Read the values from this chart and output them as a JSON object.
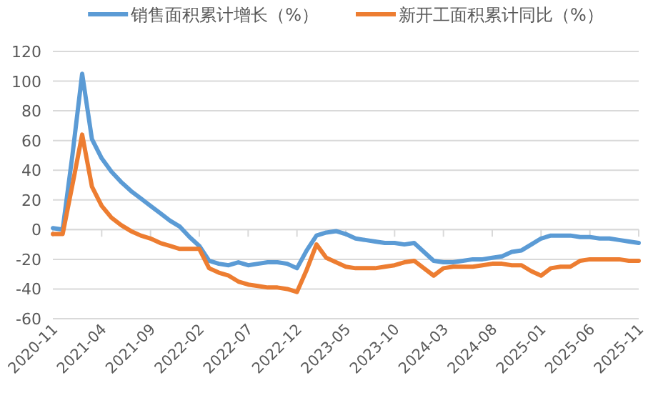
{
  "chart_data": {
    "type": "line",
    "categories": [
      "2020-11",
      null,
      null,
      null,
      null,
      "2021-04",
      null,
      null,
      null,
      null,
      "2021-09",
      null,
      null,
      null,
      null,
      "2022-02",
      null,
      null,
      null,
      null,
      "2022-07",
      null,
      null,
      null,
      null,
      "2022-12",
      null,
      null,
      null,
      null,
      "2023-05",
      null,
      null,
      null,
      null,
      "2023-10",
      null,
      null,
      null,
      null,
      "2024-03",
      null,
      null,
      null,
      null,
      "2024-08",
      null,
      null,
      null,
      null,
      "2025-01",
      null,
      null,
      null,
      null,
      "2025-06",
      null,
      null,
      null,
      null,
      "2025-11"
    ],
    "series": [
      {
        "name": "销售面积累计增长（%）",
        "color": "#5b9bd5",
        "values": [
          1,
          0,
          50,
          105,
          61,
          48,
          39,
          32,
          26,
          21,
          16,
          11,
          6,
          2,
          -5,
          -11,
          -21,
          -23,
          -24,
          -22,
          -24,
          -23,
          -22,
          -22,
          -23,
          -26,
          -14,
          -4,
          -2,
          -1,
          -3,
          -6,
          -7,
          -8,
          -9,
          -9,
          -10,
          -9,
          -15,
          -21,
          -22,
          -22,
          -21,
          -20,
          -20,
          -19,
          -18,
          -15,
          -14,
          -10,
          -6,
          -4,
          -4,
          -4,
          -5,
          -5,
          -6,
          -6,
          -7,
          -8,
          -9
        ]
      },
      {
        "name": "新开工面积累计同比（%）",
        "color": "#ed7d31",
        "values": [
          -3,
          -3,
          30,
          64,
          29,
          16,
          8,
          3,
          -1,
          -4,
          -6,
          -9,
          -11,
          -13,
          -13,
          -13,
          -26,
          -29,
          -31,
          -35,
          -37,
          -38,
          -39,
          -39,
          -40,
          -42,
          -27,
          -10,
          -19,
          -22,
          -25,
          -26,
          -26,
          -26,
          -25,
          -24,
          -22,
          -21,
          -26,
          -31,
          -26,
          -25,
          -25,
          -25,
          -24,
          -23,
          -23,
          -24,
          -24,
          -28,
          -31,
          -26,
          -25,
          -25,
          -21,
          -20,
          -20,
          -20,
          -20,
          -21,
          -21
        ]
      }
    ],
    "ylim": [
      -60,
      120
    ],
    "yticks": [
      -60,
      -40,
      -20,
      0,
      20,
      40,
      60,
      80,
      100,
      120
    ],
    "grid": "y",
    "legend": "top",
    "marker": "none",
    "line_style": "solid"
  }
}
